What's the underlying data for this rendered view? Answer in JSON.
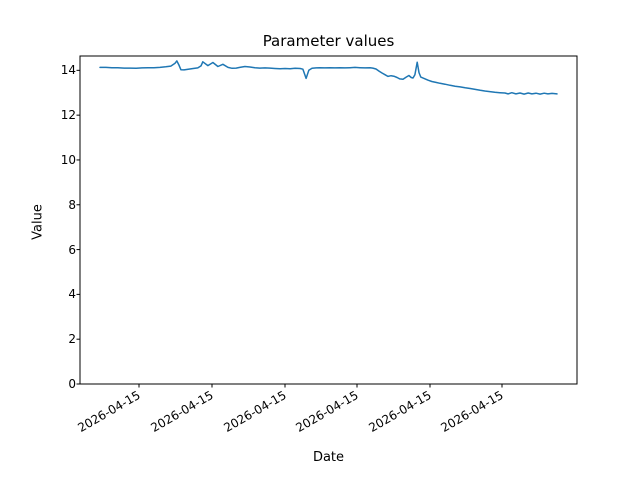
{
  "chart_data": {
    "type": "line",
    "title": "Parameter values",
    "xlabel": "Date",
    "ylabel": "Value",
    "line_color": "#1f77b4",
    "legend": "none",
    "grid": false,
    "ylim": [
      0,
      14.64
    ],
    "yticks": [
      0,
      2,
      4,
      6,
      8,
      10,
      12,
      14
    ],
    "x_tick_labels": [
      "2026-04-15",
      "2026-04-15",
      "2026-04-15",
      "2026-04-15",
      "2026-04-15",
      "2026-04-15"
    ],
    "points": [
      [
        0.0,
        14.13
      ],
      [
        0.013,
        14.13
      ],
      [
        0.026,
        14.12
      ],
      [
        0.039,
        14.12
      ],
      [
        0.053,
        14.1
      ],
      [
        0.066,
        14.1
      ],
      [
        0.079,
        14.09
      ],
      [
        0.092,
        14.11
      ],
      [
        0.105,
        14.12
      ],
      [
        0.118,
        14.12
      ],
      [
        0.131,
        14.13
      ],
      [
        0.144,
        14.16
      ],
      [
        0.155,
        14.19
      ],
      [
        0.164,
        14.31
      ],
      [
        0.168,
        14.42
      ],
      [
        0.173,
        14.22
      ],
      [
        0.177,
        14.03
      ],
      [
        0.184,
        14.02
      ],
      [
        0.193,
        14.05
      ],
      [
        0.204,
        14.08
      ],
      [
        0.214,
        14.11
      ],
      [
        0.221,
        14.2
      ],
      [
        0.225,
        14.38
      ],
      [
        0.236,
        14.21
      ],
      [
        0.247,
        14.35
      ],
      [
        0.258,
        14.17
      ],
      [
        0.269,
        14.27
      ],
      [
        0.28,
        14.13
      ],
      [
        0.289,
        14.09
      ],
      [
        0.298,
        14.1
      ],
      [
        0.306,
        14.13
      ],
      [
        0.317,
        14.17
      ],
      [
        0.328,
        14.15
      ],
      [
        0.339,
        14.12
      ],
      [
        0.35,
        14.1
      ],
      [
        0.361,
        14.11
      ],
      [
        0.372,
        14.1
      ],
      [
        0.383,
        14.08
      ],
      [
        0.394,
        14.07
      ],
      [
        0.405,
        14.08
      ],
      [
        0.416,
        14.07
      ],
      [
        0.427,
        14.09
      ],
      [
        0.438,
        14.08
      ],
      [
        0.444,
        14.05
      ],
      [
        0.451,
        13.64
      ],
      [
        0.457,
        14.0
      ],
      [
        0.464,
        14.09
      ],
      [
        0.473,
        14.11
      ],
      [
        0.481,
        14.12
      ],
      [
        0.492,
        14.11
      ],
      [
        0.503,
        14.12
      ],
      [
        0.514,
        14.11
      ],
      [
        0.525,
        14.12
      ],
      [
        0.536,
        14.11
      ],
      [
        0.547,
        14.12
      ],
      [
        0.558,
        14.13
      ],
      [
        0.569,
        14.12
      ],
      [
        0.58,
        14.11
      ],
      [
        0.591,
        14.12
      ],
      [
        0.597,
        14.1
      ],
      [
        0.604,
        14.06
      ],
      [
        0.611,
        13.96
      ],
      [
        0.617,
        13.88
      ],
      [
        0.624,
        13.8
      ],
      [
        0.63,
        13.73
      ],
      [
        0.637,
        13.76
      ],
      [
        0.643,
        13.74
      ],
      [
        0.65,
        13.68
      ],
      [
        0.656,
        13.62
      ],
      [
        0.663,
        13.6
      ],
      [
        0.67,
        13.7
      ],
      [
        0.676,
        13.77
      ],
      [
        0.681,
        13.68
      ],
      [
        0.685,
        13.66
      ],
      [
        0.689,
        13.8
      ],
      [
        0.694,
        14.36
      ],
      [
        0.698,
        13.9
      ],
      [
        0.702,
        13.7
      ],
      [
        0.709,
        13.64
      ],
      [
        0.718,
        13.56
      ],
      [
        0.726,
        13.5
      ],
      [
        0.735,
        13.46
      ],
      [
        0.744,
        13.42
      ],
      [
        0.755,
        13.38
      ],
      [
        0.766,
        13.33
      ],
      [
        0.777,
        13.29
      ],
      [
        0.788,
        13.26
      ],
      [
        0.799,
        13.22
      ],
      [
        0.81,
        13.19
      ],
      [
        0.821,
        13.15
      ],
      [
        0.832,
        13.11
      ],
      [
        0.842,
        13.08
      ],
      [
        0.853,
        13.05
      ],
      [
        0.864,
        13.02
      ],
      [
        0.875,
        13.0
      ],
      [
        0.886,
        12.99
      ],
      [
        0.893,
        12.95
      ],
      [
        0.901,
        13.0
      ],
      [
        0.91,
        12.95
      ],
      [
        0.919,
        12.99
      ],
      [
        0.928,
        12.94
      ],
      [
        0.937,
        12.99
      ],
      [
        0.945,
        12.95
      ],
      [
        0.954,
        12.98
      ],
      [
        0.963,
        12.94
      ],
      [
        0.972,
        12.98
      ],
      [
        0.98,
        12.95
      ],
      [
        0.989,
        12.97
      ],
      [
        1.0,
        12.95
      ]
    ]
  }
}
